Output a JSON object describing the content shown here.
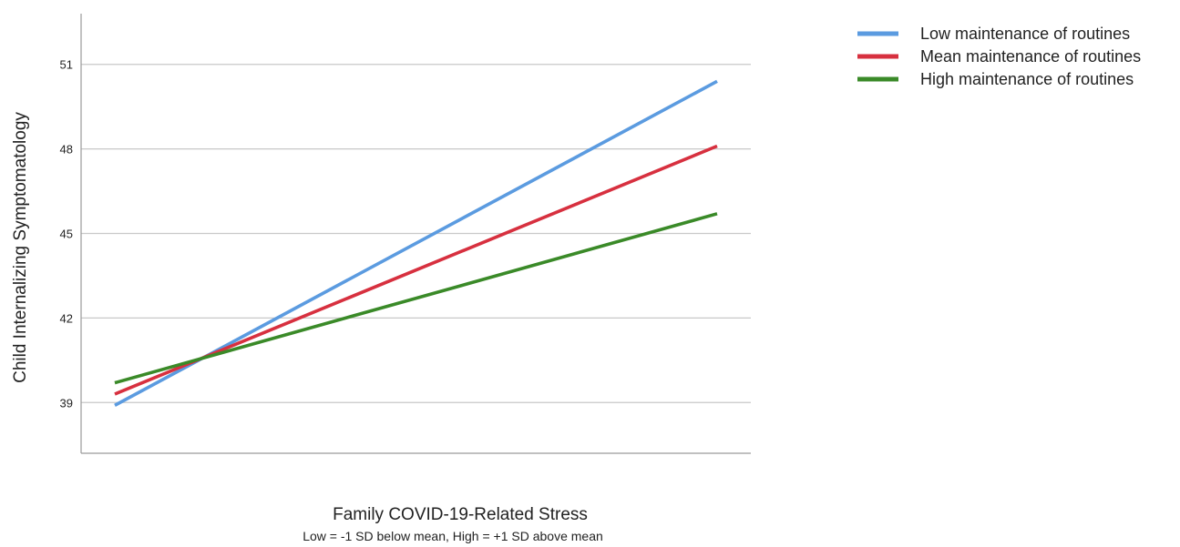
{
  "chart_data": {
    "type": "line",
    "title": "",
    "xlabel": "Family COVID-19-Related Stress",
    "xlabel_sub": "Low = -1 SD below mean, High = +1 SD above mean",
    "ylabel": "Child Internalizing Symptomatology",
    "x": [
      "Low",
      "High"
    ],
    "x_tick_labels_shown": false,
    "yticks": [
      39,
      42,
      45,
      48,
      51
    ],
    "ylim": [
      37.2,
      52.8
    ],
    "grid": "horizontal",
    "legend_position": "top-right",
    "series": [
      {
        "name": "Low maintenance of routines",
        "color": "#5b9be0",
        "values": [
          38.9,
          50.4
        ]
      },
      {
        "name": "Mean maintenance of routines",
        "color": "#d7303f",
        "values": [
          39.3,
          48.1
        ]
      },
      {
        "name": "High maintenance of routines",
        "color": "#3a8a28",
        "values": [
          39.7,
          45.7
        ]
      }
    ]
  }
}
